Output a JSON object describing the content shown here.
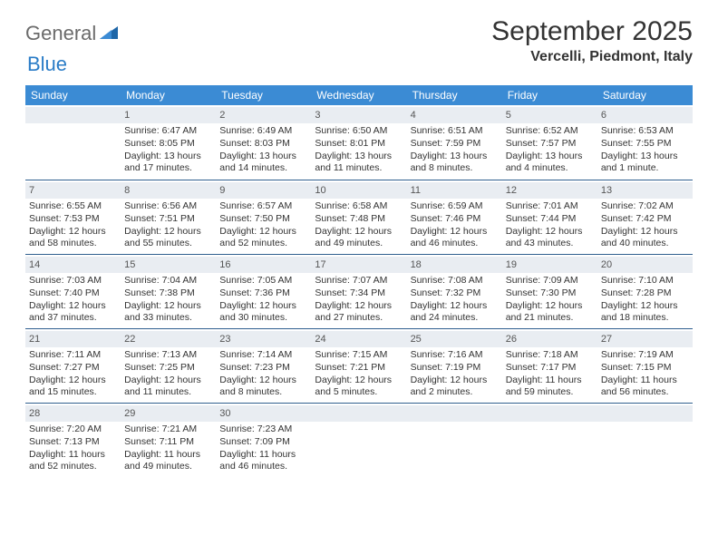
{
  "logo": {
    "word1": "General",
    "word2": "Blue"
  },
  "title": "September 2025",
  "location": "Vercelli, Piedmont, Italy",
  "dow": [
    "Sunday",
    "Monday",
    "Tuesday",
    "Wednesday",
    "Thursday",
    "Friday",
    "Saturday"
  ],
  "colors": {
    "header_bg": "#3b8bd4",
    "daynum_bg": "#e9edf2",
    "week_border": "#2f5f8f",
    "logo_gray": "#6b6b6b",
    "logo_blue": "#2a7cc7"
  },
  "weeks": [
    [
      {
        "n": "",
        "sr": "",
        "ss": "",
        "dl": ""
      },
      {
        "n": "1",
        "sr": "Sunrise: 6:47 AM",
        "ss": "Sunset: 8:05 PM",
        "dl": "Daylight: 13 hours and 17 minutes."
      },
      {
        "n": "2",
        "sr": "Sunrise: 6:49 AM",
        "ss": "Sunset: 8:03 PM",
        "dl": "Daylight: 13 hours and 14 minutes."
      },
      {
        "n": "3",
        "sr": "Sunrise: 6:50 AM",
        "ss": "Sunset: 8:01 PM",
        "dl": "Daylight: 13 hours and 11 minutes."
      },
      {
        "n": "4",
        "sr": "Sunrise: 6:51 AM",
        "ss": "Sunset: 7:59 PM",
        "dl": "Daylight: 13 hours and 8 minutes."
      },
      {
        "n": "5",
        "sr": "Sunrise: 6:52 AM",
        "ss": "Sunset: 7:57 PM",
        "dl": "Daylight: 13 hours and 4 minutes."
      },
      {
        "n": "6",
        "sr": "Sunrise: 6:53 AM",
        "ss": "Sunset: 7:55 PM",
        "dl": "Daylight: 13 hours and 1 minute."
      }
    ],
    [
      {
        "n": "7",
        "sr": "Sunrise: 6:55 AM",
        "ss": "Sunset: 7:53 PM",
        "dl": "Daylight: 12 hours and 58 minutes."
      },
      {
        "n": "8",
        "sr": "Sunrise: 6:56 AM",
        "ss": "Sunset: 7:51 PM",
        "dl": "Daylight: 12 hours and 55 minutes."
      },
      {
        "n": "9",
        "sr": "Sunrise: 6:57 AM",
        "ss": "Sunset: 7:50 PM",
        "dl": "Daylight: 12 hours and 52 minutes."
      },
      {
        "n": "10",
        "sr": "Sunrise: 6:58 AM",
        "ss": "Sunset: 7:48 PM",
        "dl": "Daylight: 12 hours and 49 minutes."
      },
      {
        "n": "11",
        "sr": "Sunrise: 6:59 AM",
        "ss": "Sunset: 7:46 PM",
        "dl": "Daylight: 12 hours and 46 minutes."
      },
      {
        "n": "12",
        "sr": "Sunrise: 7:01 AM",
        "ss": "Sunset: 7:44 PM",
        "dl": "Daylight: 12 hours and 43 minutes."
      },
      {
        "n": "13",
        "sr": "Sunrise: 7:02 AM",
        "ss": "Sunset: 7:42 PM",
        "dl": "Daylight: 12 hours and 40 minutes."
      }
    ],
    [
      {
        "n": "14",
        "sr": "Sunrise: 7:03 AM",
        "ss": "Sunset: 7:40 PM",
        "dl": "Daylight: 12 hours and 37 minutes."
      },
      {
        "n": "15",
        "sr": "Sunrise: 7:04 AM",
        "ss": "Sunset: 7:38 PM",
        "dl": "Daylight: 12 hours and 33 minutes."
      },
      {
        "n": "16",
        "sr": "Sunrise: 7:05 AM",
        "ss": "Sunset: 7:36 PM",
        "dl": "Daylight: 12 hours and 30 minutes."
      },
      {
        "n": "17",
        "sr": "Sunrise: 7:07 AM",
        "ss": "Sunset: 7:34 PM",
        "dl": "Daylight: 12 hours and 27 minutes."
      },
      {
        "n": "18",
        "sr": "Sunrise: 7:08 AM",
        "ss": "Sunset: 7:32 PM",
        "dl": "Daylight: 12 hours and 24 minutes."
      },
      {
        "n": "19",
        "sr": "Sunrise: 7:09 AM",
        "ss": "Sunset: 7:30 PM",
        "dl": "Daylight: 12 hours and 21 minutes."
      },
      {
        "n": "20",
        "sr": "Sunrise: 7:10 AM",
        "ss": "Sunset: 7:28 PM",
        "dl": "Daylight: 12 hours and 18 minutes."
      }
    ],
    [
      {
        "n": "21",
        "sr": "Sunrise: 7:11 AM",
        "ss": "Sunset: 7:27 PM",
        "dl": "Daylight: 12 hours and 15 minutes."
      },
      {
        "n": "22",
        "sr": "Sunrise: 7:13 AM",
        "ss": "Sunset: 7:25 PM",
        "dl": "Daylight: 12 hours and 11 minutes."
      },
      {
        "n": "23",
        "sr": "Sunrise: 7:14 AM",
        "ss": "Sunset: 7:23 PM",
        "dl": "Daylight: 12 hours and 8 minutes."
      },
      {
        "n": "24",
        "sr": "Sunrise: 7:15 AM",
        "ss": "Sunset: 7:21 PM",
        "dl": "Daylight: 12 hours and 5 minutes."
      },
      {
        "n": "25",
        "sr": "Sunrise: 7:16 AM",
        "ss": "Sunset: 7:19 PM",
        "dl": "Daylight: 12 hours and 2 minutes."
      },
      {
        "n": "26",
        "sr": "Sunrise: 7:18 AM",
        "ss": "Sunset: 7:17 PM",
        "dl": "Daylight: 11 hours and 59 minutes."
      },
      {
        "n": "27",
        "sr": "Sunrise: 7:19 AM",
        "ss": "Sunset: 7:15 PM",
        "dl": "Daylight: 11 hours and 56 minutes."
      }
    ],
    [
      {
        "n": "28",
        "sr": "Sunrise: 7:20 AM",
        "ss": "Sunset: 7:13 PM",
        "dl": "Daylight: 11 hours and 52 minutes."
      },
      {
        "n": "29",
        "sr": "Sunrise: 7:21 AM",
        "ss": "Sunset: 7:11 PM",
        "dl": "Daylight: 11 hours and 49 minutes."
      },
      {
        "n": "30",
        "sr": "Sunrise: 7:23 AM",
        "ss": "Sunset: 7:09 PM",
        "dl": "Daylight: 11 hours and 46 minutes."
      },
      {
        "n": "",
        "sr": "",
        "ss": "",
        "dl": ""
      },
      {
        "n": "",
        "sr": "",
        "ss": "",
        "dl": ""
      },
      {
        "n": "",
        "sr": "",
        "ss": "",
        "dl": ""
      },
      {
        "n": "",
        "sr": "",
        "ss": "",
        "dl": ""
      }
    ]
  ]
}
